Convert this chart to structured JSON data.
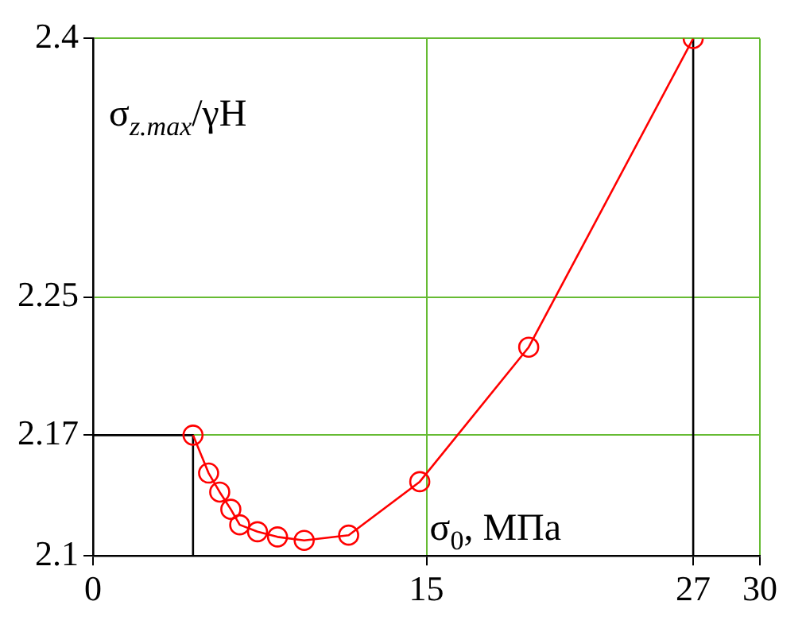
{
  "chart_data": {
    "type": "line",
    "xlabel": "σ$_{0}$, МПа",
    "ylabel": "σ$_{z.max}$/γH",
    "xlim": [
      0,
      30
    ],
    "ylim": [
      2.1,
      2.4
    ],
    "xticks": [
      0,
      15,
      27,
      30
    ],
    "yticks": [
      2.1,
      2.17,
      2.25,
      2.4
    ],
    "grid": true,
    "legend": false,
    "series": [
      {
        "color": "#ff0000",
        "marker": "circle",
        "x": [
          4.5,
          5.2,
          5.7,
          6.2,
          6.6,
          7.4,
          8.3,
          9.5,
          11.5,
          14.7,
          19.6,
          27
        ],
        "values": [
          2.17,
          2.148,
          2.137,
          2.127,
          2.118,
          2.114,
          2.111,
          2.109,
          2.112,
          2.143,
          2.221,
          2.4
        ]
      },
      {
        "color": "#000000",
        "marker": "none",
        "x": [
          0,
          4.5,
          4.5
        ],
        "values": [
          2.17,
          2.17,
          2.1
        ]
      },
      {
        "color": "#000000",
        "marker": "none",
        "x": [
          27,
          27
        ],
        "values": [
          2.1,
          2.4
        ]
      }
    ]
  }
}
